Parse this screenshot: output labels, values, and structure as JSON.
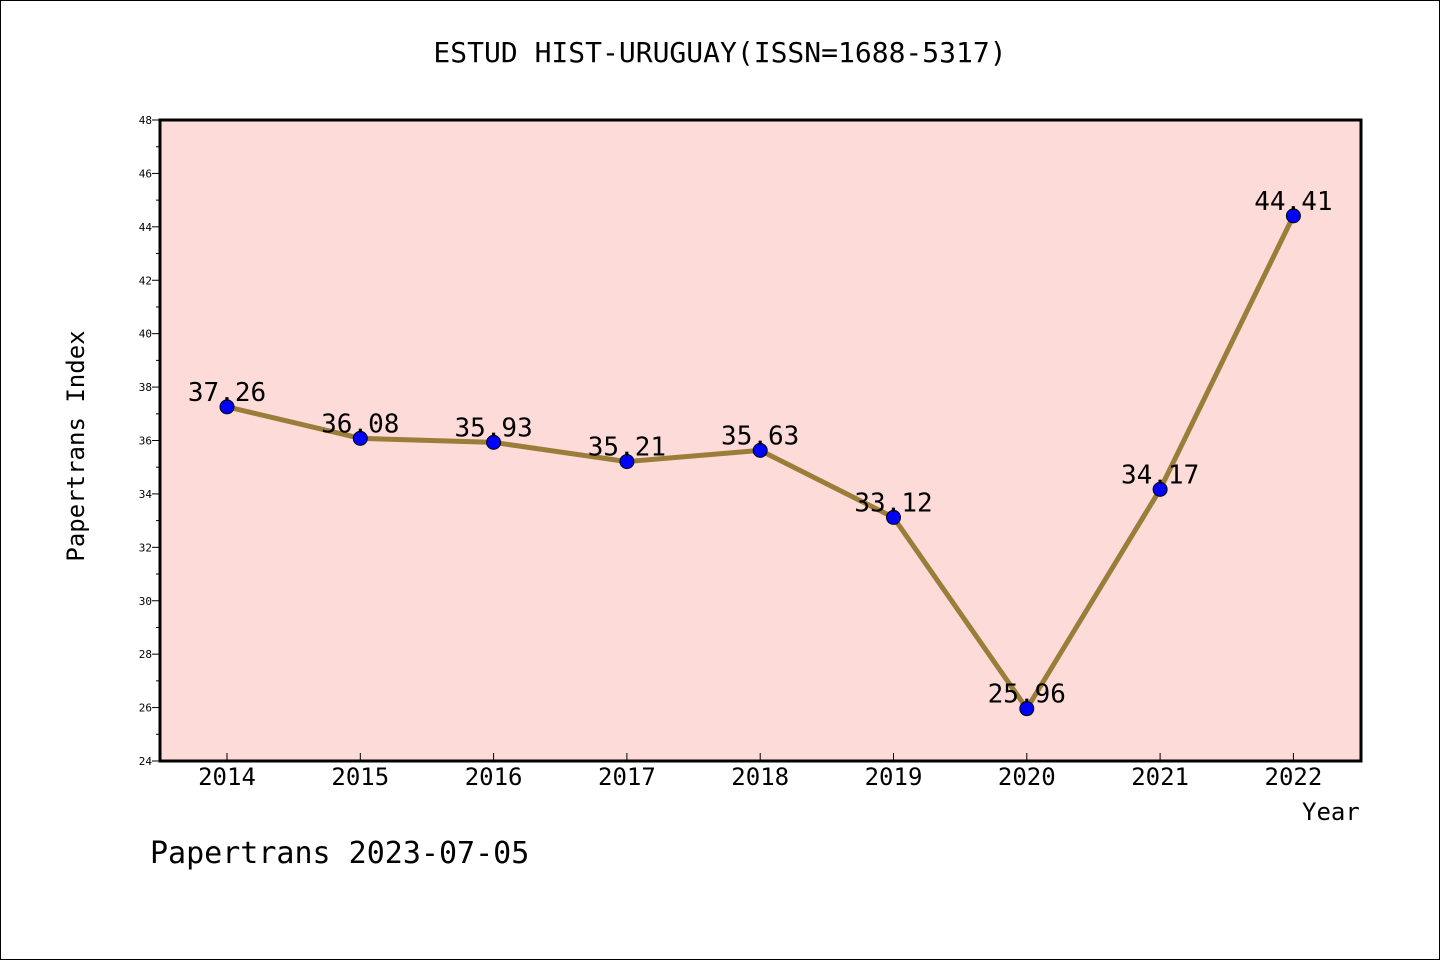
{
  "chart_data": {
    "type": "line",
    "title": "ESTUD HIST-URUGUAY(ISSN=1688-5317)",
    "xlabel": "Year",
    "ylabel": "Papertrans Index",
    "x": [
      "2014",
      "2015",
      "2016",
      "2017",
      "2018",
      "2019",
      "2020",
      "2021",
      "2022"
    ],
    "series": [
      {
        "values": [
          37.26,
          36.08,
          35.93,
          35.21,
          35.63,
          33.12,
          25.96,
          34.17,
          44.41
        ],
        "labels": [
          "37.26",
          "36.08",
          "35.93",
          "35.21",
          "35.63",
          "33.12",
          "25.96",
          "34.17",
          "44.41"
        ]
      }
    ],
    "ylim": [
      24,
      48
    ],
    "yticks": [
      "24",
      "26",
      "28",
      "30",
      "32",
      "34",
      "36",
      "38",
      "40",
      "42",
      "44",
      "46",
      "48"
    ],
    "grid": false,
    "colors": {
      "plot_background": "#fddbd8",
      "line": "#9b7d3a",
      "marker": "#0000ff"
    }
  },
  "footer": "Papertrans 2023-07-05"
}
